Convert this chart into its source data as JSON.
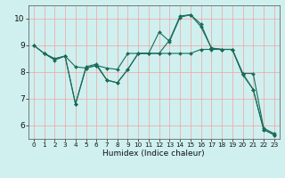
{
  "title": "",
  "xlabel": "Humidex (Indice chaleur)",
  "background_color": "#cff0ef",
  "grid_color": "#f5a0a0",
  "line_color": "#1a6b5a",
  "xlim": [
    -0.5,
    23.5
  ],
  "ylim": [
    5.5,
    10.5
  ],
  "xticks": [
    0,
    1,
    2,
    3,
    4,
    5,
    6,
    7,
    8,
    9,
    10,
    11,
    12,
    13,
    14,
    15,
    16,
    17,
    18,
    19,
    20,
    21,
    22,
    23
  ],
  "yticks": [
    6,
    7,
    8,
    9,
    10
  ],
  "line1_x": [
    0,
    1,
    2,
    3,
    4,
    5,
    6,
    7,
    8,
    9,
    10,
    11,
    12,
    13,
    14,
    15,
    16,
    17,
    18,
    19,
    20,
    21,
    22,
    23
  ],
  "line1_y": [
    9.0,
    8.7,
    8.5,
    8.6,
    6.8,
    8.2,
    8.3,
    7.7,
    7.6,
    8.1,
    8.7,
    8.7,
    8.7,
    9.2,
    10.1,
    10.15,
    9.8,
    8.9,
    8.85,
    8.85,
    7.9,
    7.35,
    5.85,
    5.65
  ],
  "line2_x": [
    0,
    1,
    2,
    3,
    4,
    5,
    6,
    7,
    8,
    9,
    10,
    11,
    12,
    13,
    14,
    15,
    16,
    17,
    18,
    19,
    20,
    21,
    22,
    23
  ],
  "line2_y": [
    9.0,
    8.7,
    8.45,
    8.6,
    8.2,
    8.15,
    8.25,
    8.15,
    8.1,
    8.7,
    8.7,
    8.7,
    8.7,
    8.7,
    8.7,
    8.7,
    8.85,
    8.85,
    8.85,
    8.85,
    7.95,
    7.95,
    5.9,
    5.7
  ],
  "line3_x": [
    1,
    2,
    3,
    4,
    5,
    6,
    7,
    8,
    9,
    10,
    11,
    12,
    13,
    14,
    15,
    16,
    17,
    18,
    19,
    20,
    21,
    22,
    23
  ],
  "line3_y": [
    8.7,
    8.5,
    8.6,
    6.8,
    8.15,
    8.25,
    7.7,
    7.6,
    8.1,
    8.7,
    8.7,
    9.5,
    9.15,
    10.05,
    10.15,
    9.7,
    8.9,
    8.85,
    8.85,
    7.95,
    7.35,
    5.85,
    5.65
  ],
  "xlabel_fontsize": 6.5,
  "ytick_fontsize": 6.5,
  "xtick_fontsize": 5.2
}
